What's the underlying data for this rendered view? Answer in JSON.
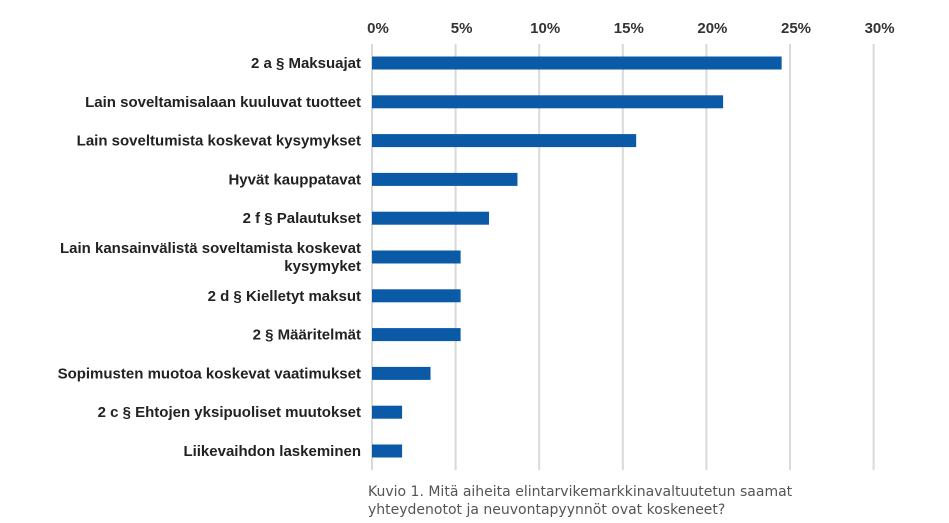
{
  "chart_data": {
    "type": "bar",
    "orientation": "horizontal",
    "categories": [
      "2 a § Maksuajat",
      "Lain soveltamisalaan kuuluvat tuotteet",
      "Lain soveltumista koskevat kysymykset",
      "Hyvät kauppatavat",
      "2 f § Palautukset",
      "Lain kansainvälistä soveltamista koskevat kysymyket",
      "2 d § Kielletyt maksut",
      "2 § Määritelmät",
      "Sopimusten muotoa koskevat vaatimukset",
      "2 c § Ehtojen yksipuoliset muutokset",
      "Liikevaihdon laskeminen"
    ],
    "values": [
      24.5,
      21.0,
      15.8,
      8.7,
      7.0,
      5.3,
      5.3,
      5.3,
      3.5,
      1.8,
      1.8
    ],
    "xlim": [
      0,
      30
    ],
    "xticks": [
      "0%",
      "5%",
      "10%",
      "15%",
      "20%",
      "25%",
      "30%"
    ],
    "xtick_values": [
      0,
      5,
      10,
      15,
      20,
      25,
      30
    ],
    "axis_position": "top",
    "grid": true,
    "bar_color": "#0b5aa8",
    "grid_color": "#d9d9d9"
  },
  "caption": {
    "line1": "Kuvio 1. Mitä aiheita elintarvikemarkkinavaltuutetun saamat",
    "line2": "yhteydenotot ja neuvontapyynnöt ovat koskeneet?"
  }
}
